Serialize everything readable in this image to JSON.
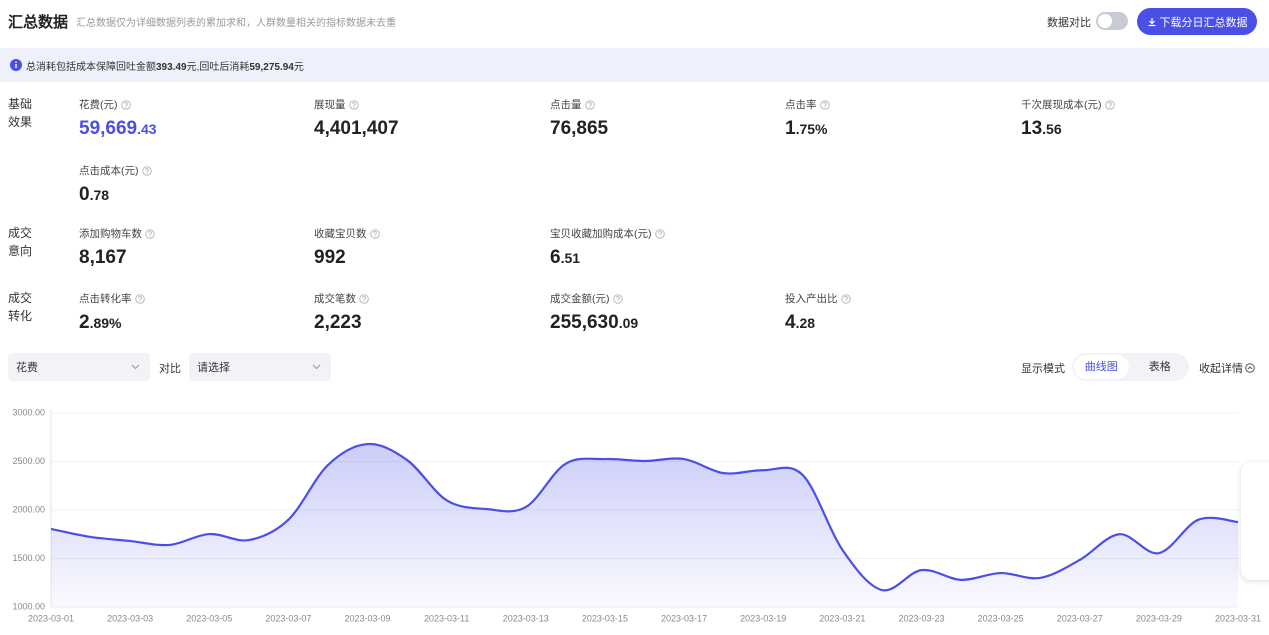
{
  "header": {
    "title": "汇总数据",
    "subtitle": "汇总数据仅为详细数据列表的累加求和，人群数量相关的指标数据未去重",
    "compare_label": "数据对比",
    "download_button": "下载分日汇总数据"
  },
  "notice": {
    "parts": [
      "总消耗包括成本保障回吐金额",
      "393.49",
      "元,回吐后消耗",
      "59,275.94",
      "元"
    ]
  },
  "groups": [
    {
      "label": "基础效果",
      "metrics": [
        {
          "label": "花费(元)",
          "value": "59,669.43"
        },
        {
          "label": "展现量",
          "value": "4,401,407"
        },
        {
          "label": "点击量",
          "value": "76,865"
        },
        {
          "label": "点击率",
          "value": "1.75%"
        },
        {
          "label": "千次展现成本(元)",
          "value": "13.56"
        },
        {
          "label": "点击成本(元)",
          "value": "0.78"
        }
      ]
    },
    {
      "label": "成交意向",
      "metrics": [
        {
          "label": "添加购物车数",
          "value": "8,167"
        },
        {
          "label": "收藏宝贝数",
          "value": "992"
        },
        {
          "label": "宝贝收藏加购成本(元)",
          "value": "6.51"
        }
      ]
    },
    {
      "label": "成交转化",
      "metrics": [
        {
          "label": "点击转化率",
          "value": "2.89%"
        },
        {
          "label": "成交笔数",
          "value": "2,223"
        },
        {
          "label": "成交金额(元)",
          "value": "255,630.09"
        },
        {
          "label": "投入产出比",
          "value": "4.28"
        }
      ]
    }
  ],
  "controls": {
    "metric_select": "花费",
    "compare_label": "对比",
    "compare_select": "请选择",
    "display_mode_label": "显示模式",
    "modes": [
      "曲线图",
      "表格"
    ],
    "collapse": "收起详情"
  },
  "chart_data": {
    "type": "line",
    "x": [
      "2023-03-01",
      null,
      "2023-03-03",
      null,
      "2023-03-05",
      null,
      "2023-03-07",
      null,
      "2023-03-09",
      null,
      "2023-03-11",
      null,
      "2023-03-13",
      null,
      "2023-03-15",
      null,
      "2023-03-17",
      null,
      "2023-03-19",
      null,
      "2023-03-21",
      null,
      "2023-03-23",
      null,
      "2023-03-25",
      null,
      "2023-03-27",
      null,
      "2023-03-29",
      null,
      "2023-03-31"
    ],
    "series": [
      {
        "name": "花费",
        "color": "#4a4fe6",
        "values": [
          1805,
          1722,
          1680,
          1640,
          1752,
          1690,
          1900,
          2464,
          2680,
          2515,
          2100,
          2010,
          2030,
          2475,
          2525,
          2505,
          2525,
          2380,
          2410,
          2360,
          1590,
          1175,
          1380,
          1280,
          1350,
          1300,
          1485,
          1750,
          1555,
          1900,
          1876
        ]
      }
    ],
    "ylim": [
      1000,
      3000
    ],
    "yticks": [
      {
        "value": 1000,
        "label": "1000.00"
      },
      {
        "value": 1500,
        "label": "1500.00"
      },
      {
        "value": 2000,
        "label": "2000.00"
      },
      {
        "value": 2500,
        "label": "2500.00"
      },
      {
        "value": 3000,
        "label": "3000.00"
      }
    ],
    "grid": true
  }
}
